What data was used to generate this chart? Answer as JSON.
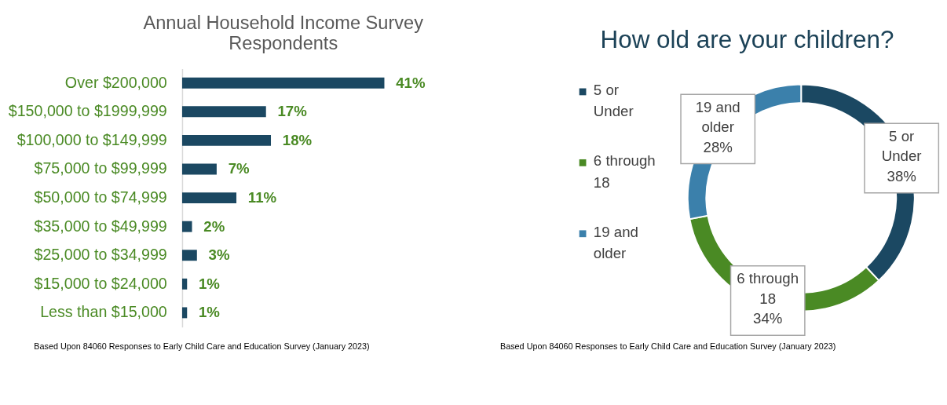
{
  "chart_data": [
    {
      "type": "bar",
      "orientation": "horizontal",
      "title": "Annual Household Income Survey Respondents",
      "categories": [
        "Over $200,000",
        "$150,000 to $1999,999",
        "$100,000 to $149,999",
        "$75,000 to $99,999",
        "$50,000 to $74,999",
        "$35,000 to $49,999",
        "$25,000 to $34,999",
        "$15,000 to $24,000",
        "Less than $15,000"
      ],
      "values": [
        41,
        17,
        18,
        7,
        11,
        2,
        3,
        1,
        1
      ],
      "value_labels": [
        "41%",
        "17%",
        "18%",
        "7%",
        "11%",
        "2%",
        "3%",
        "1%",
        "1%"
      ],
      "color": "#1b4862",
      "grid": false,
      "tick_labels": "y",
      "annotations": [
        "Based Upon 84060 Responses to Early Child Care and Education Survey (January 2023)"
      ]
    },
    {
      "type": "donut",
      "title": "How old are your children?",
      "categories": [
        "5 or Under",
        "6 through 18",
        "19 and older"
      ],
      "values": [
        38,
        34,
        28
      ],
      "value_labels": [
        "38%",
        "34%",
        "28%"
      ],
      "colors": [
        "#1b4862",
        "#4a8a24",
        "#3b80ab"
      ],
      "legend": "left",
      "annotations": [
        "Based Upon 84060 Responses to Early Child Care and Education Survey (January 2023)"
      ]
    }
  ]
}
